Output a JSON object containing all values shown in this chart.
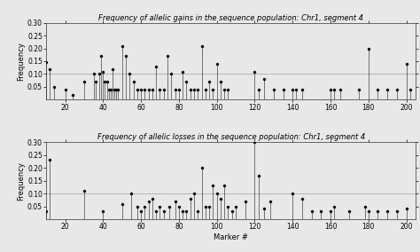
{
  "title1": "Frequency of allelic gains in the sequence population: Chr1, segment 4",
  "title2": "Frequency of allelic losses in the sequence population: Chr1, segment 4",
  "xlabel": "Marker #",
  "ylabel": "Frequency",
  "xlim": [
    10,
    205
  ],
  "xticks": [
    20,
    40,
    60,
    80,
    100,
    120,
    140,
    160,
    180,
    200
  ],
  "yticks": [
    0.05,
    0.1,
    0.15,
    0.2,
    0.25,
    0.3
  ],
  "hline1": 0.1,
  "hline2": 0.1,
  "gains_x": [
    10,
    12,
    14,
    20,
    24,
    30,
    35,
    36,
    38,
    39,
    40,
    41,
    42,
    43,
    44,
    45,
    46,
    47,
    48,
    50,
    52,
    54,
    56,
    58,
    60,
    62,
    64,
    66,
    68,
    70,
    72,
    74,
    76,
    78,
    80,
    82,
    84,
    86,
    88,
    90,
    92,
    94,
    96,
    98,
    100,
    102,
    104,
    106,
    120,
    122,
    125,
    130,
    135,
    140,
    142,
    145,
    160,
    162,
    165,
    175,
    180,
    185,
    190,
    195,
    200,
    202
  ],
  "gains_y": [
    0.145,
    0.12,
    0.05,
    0.04,
    0.02,
    0.07,
    0.1,
    0.07,
    0.1,
    0.17,
    0.11,
    0.07,
    0.07,
    0.04,
    0.04,
    0.12,
    0.04,
    0.04,
    0.04,
    0.21,
    0.17,
    0.1,
    0.07,
    0.04,
    0.04,
    0.04,
    0.04,
    0.04,
    0.13,
    0.04,
    0.04,
    0.17,
    0.1,
    0.04,
    0.04,
    0.11,
    0.07,
    0.04,
    0.04,
    0.04,
    0.21,
    0.04,
    0.07,
    0.04,
    0.14,
    0.07,
    0.04,
    0.04,
    0.11,
    0.04,
    0.08,
    0.04,
    0.04,
    0.04,
    0.04,
    0.04,
    0.04,
    0.04,
    0.04,
    0.04,
    0.2,
    0.04,
    0.04,
    0.04,
    0.14,
    0.04
  ],
  "losses_x": [
    10,
    12,
    30,
    40,
    50,
    55,
    58,
    60,
    62,
    64,
    66,
    68,
    70,
    72,
    75,
    78,
    80,
    82,
    84,
    86,
    88,
    90,
    92,
    94,
    96,
    98,
    100,
    102,
    104,
    106,
    108,
    110,
    115,
    120,
    122,
    125,
    128,
    140,
    145,
    150,
    155,
    160,
    162,
    170,
    178,
    180,
    185,
    190,
    195,
    200
  ],
  "losses_y": [
    0.03,
    0.23,
    0.11,
    0.03,
    0.06,
    0.1,
    0.05,
    0.03,
    0.05,
    0.07,
    0.08,
    0.03,
    0.05,
    0.03,
    0.05,
    0.07,
    0.05,
    0.03,
    0.03,
    0.08,
    0.1,
    0.03,
    0.2,
    0.05,
    0.05,
    0.13,
    0.1,
    0.08,
    0.13,
    0.05,
    0.03,
    0.05,
    0.07,
    0.3,
    0.17,
    0.04,
    0.07,
    0.1,
    0.08,
    0.03,
    0.03,
    0.03,
    0.05,
    0.03,
    0.05,
    0.03,
    0.03,
    0.03,
    0.03,
    0.04
  ],
  "marker_color": "#111111",
  "stem_color": "#444444",
  "bg_color": "#e8e8e8",
  "hline_color": "#aaaaaa",
  "title_fontsize": 6.0,
  "label_fontsize": 6.0,
  "tick_fontsize": 5.5
}
